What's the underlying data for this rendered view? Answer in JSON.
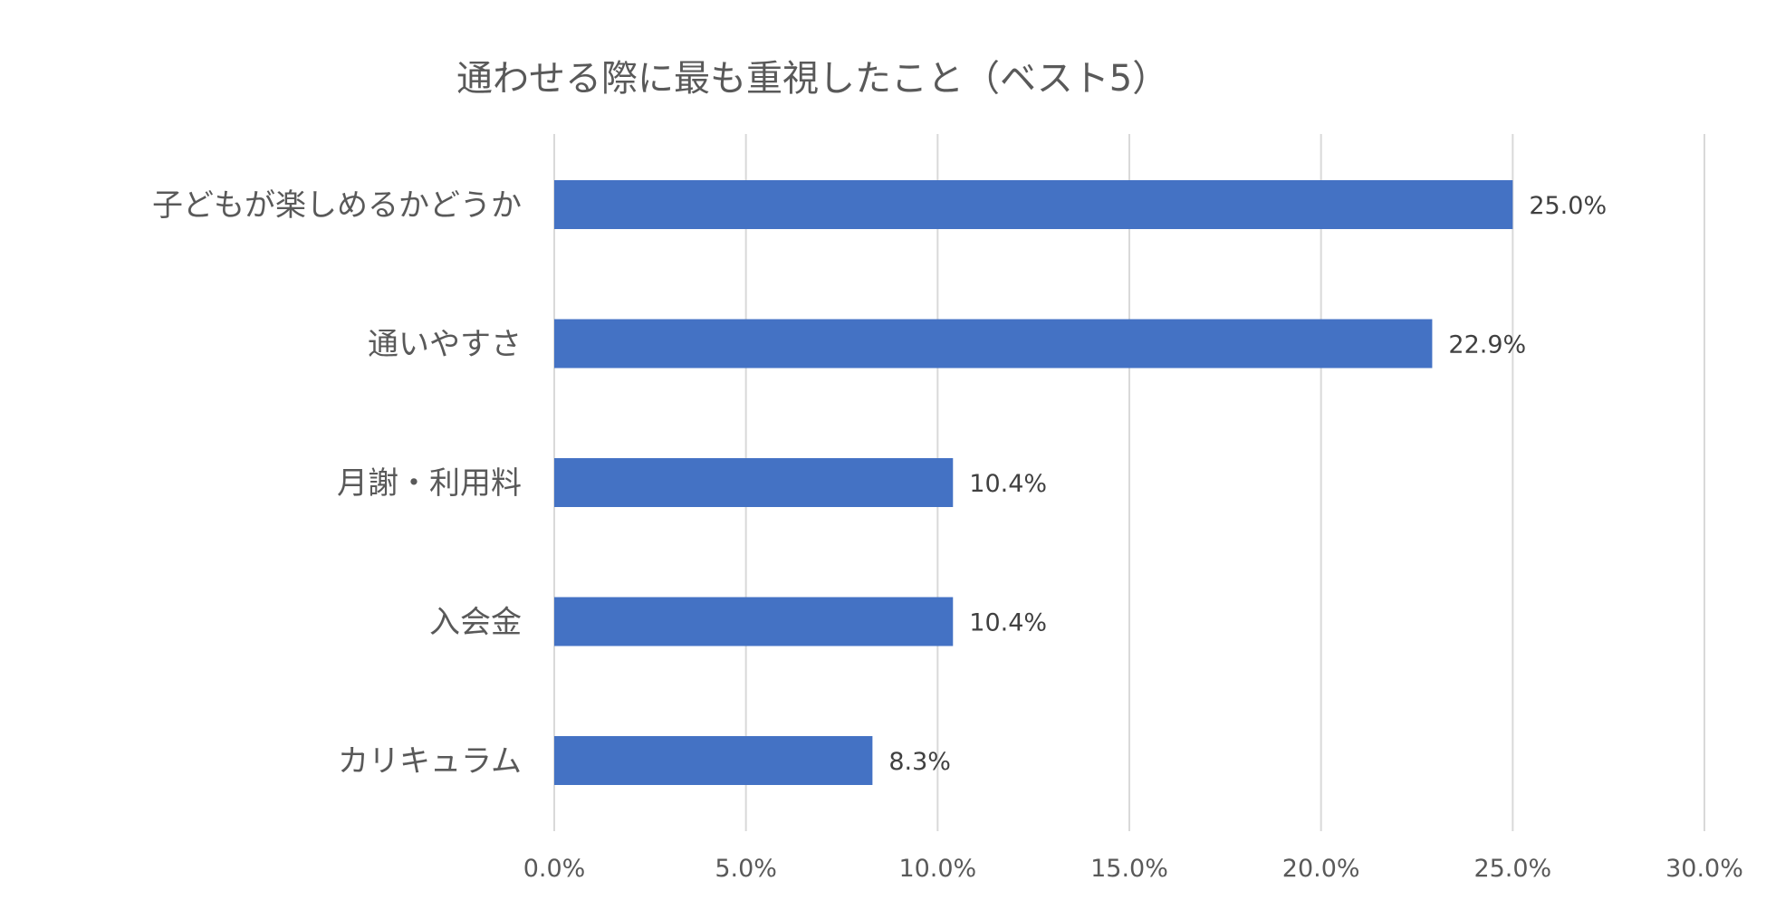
{
  "chart_data": {
    "type": "bar",
    "orientation": "horizontal",
    "title": "通わせる際に最も重視したこと（ベスト5）",
    "categories": [
      "子どもが楽しめるかどうか",
      "通いやすさ",
      "月謝・利用料",
      "入会金",
      "カリキュラム"
    ],
    "values": [
      25.0,
      22.9,
      10.4,
      10.4,
      8.3
    ],
    "data_labels": [
      "25.0%",
      "22.9%",
      "10.4%",
      "10.4%",
      "8.3%"
    ],
    "xlim": [
      0,
      30
    ],
    "x_ticks": [
      0,
      5,
      10,
      15,
      20,
      25,
      30
    ],
    "x_tick_labels": [
      "0.0%",
      "5.0%",
      "10.0%",
      "15.0%",
      "20.0%",
      "25.0%",
      "30.0%"
    ],
    "xlabel": "",
    "ylabel": "",
    "grid": true,
    "legend": "none",
    "bar_color": "#4472C4"
  }
}
